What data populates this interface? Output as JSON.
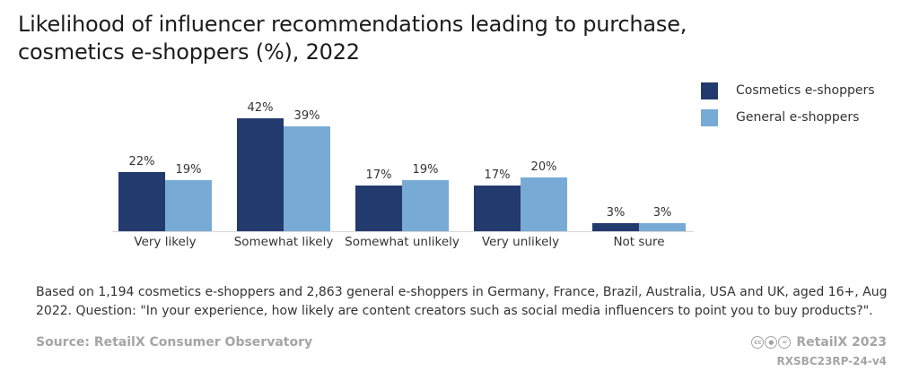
{
  "header": {
    "title_line1": "Likelihood of influencer recommendations leading to purchase,",
    "title_line2": "cosmetics e-shoppers (%), 2022"
  },
  "chart_data": {
    "type": "bar",
    "categories": [
      "Very likely",
      "Somewhat likely",
      "Somewhat unlikely",
      "Very unlikely",
      "Not sure"
    ],
    "series": [
      {
        "name": "Cosmetics e-shoppers",
        "color": "#233a6f",
        "values": [
          22,
          42,
          17,
          17,
          3
        ],
        "labels": [
          "22%",
          "42%",
          "17%",
          "17%",
          "3%"
        ]
      },
      {
        "name": "General e-shoppers",
        "color": "#77abd6",
        "values": [
          19,
          39,
          19,
          20,
          3
        ],
        "labels": [
          "19%",
          "39%",
          "19%",
          "20%",
          "3%"
        ]
      }
    ],
    "unit": "%",
    "ylim": [
      0,
      42
    ],
    "grid": false,
    "legend_position": "top-right"
  },
  "note": {
    "line1": "Based on 1,194 cosmetics e-shoppers and 2,863 general e-shoppers in Germany, France, Brazil, Australia, USA and UK, aged 16+, Aug",
    "line2": "2022. Question: \"In your experience, how likely are content creators such as social media influencers to point you to buy products?\"."
  },
  "footer": {
    "source": "Source: RetailX Consumer Observatory",
    "copyright": "RetailX 2023",
    "reference": "RXSBC23RP-24-v4",
    "license_icons": [
      "cc-icon",
      "by-icon",
      "nd-icon"
    ]
  }
}
